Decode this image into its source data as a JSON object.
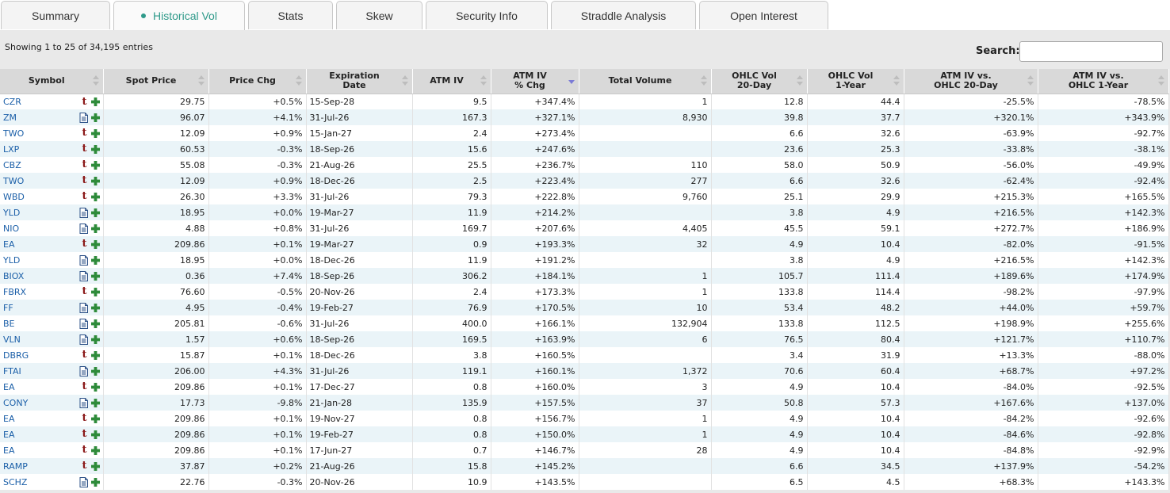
{
  "tabs": [
    {
      "label": "Summary",
      "active": false
    },
    {
      "label": "Historical Vol",
      "active": true
    },
    {
      "label": "Stats",
      "active": false
    },
    {
      "label": "Skew",
      "active": false
    },
    {
      "label": "Security Info",
      "active": false
    },
    {
      "label": "Straddle Analysis",
      "active": false
    },
    {
      "label": "Open Interest",
      "active": false
    }
  ],
  "info_text": "Showing 1 to 25 of 34,195 entries",
  "search": {
    "label": "Search:",
    "value": ""
  },
  "columns": [
    {
      "line1": "Symbol",
      "line2": ""
    },
    {
      "line1": "Spot Price",
      "line2": ""
    },
    {
      "line1": "Price Chg",
      "line2": ""
    },
    {
      "line1": "Expiration",
      "line2": "Date"
    },
    {
      "line1": "ATM IV",
      "line2": ""
    },
    {
      "line1": "ATM IV",
      "line2": "% Chg"
    },
    {
      "line1": "Total Volume",
      "line2": ""
    },
    {
      "line1": "OHLC Vol",
      "line2": "20-Day"
    },
    {
      "line1": "OHLC Vol",
      "line2": "1-Year"
    },
    {
      "line1": "ATM IV vs.",
      "line2": "OHLC 20-Day"
    },
    {
      "line1": "ATM IV vs.",
      "line2": "OHLC 1-Year"
    }
  ],
  "sorted_column": "ATM IV % Chg",
  "colors": {
    "positive": "#1e8a1e",
    "negative": "#c02020",
    "link": "#1b5fa8",
    "tab_active": "#2f9a8a",
    "row_alt": "#eaf4f8"
  },
  "rows": [
    {
      "symbol": "CZR",
      "icon": "t-icon",
      "spot": "29.75",
      "chg": "+0.5%",
      "exp": "15-Sep-28",
      "atm_iv": "9.5",
      "iv_chg": "+347.4%",
      "volume": "1",
      "ohlc20": "12.8",
      "ohlc1y": "44.4",
      "vs20": "-25.5%",
      "vs1y": "-78.5%"
    },
    {
      "symbol": "ZM",
      "icon": "doc-icon",
      "spot": "96.07",
      "chg": "+4.1%",
      "exp": "31-Jul-26",
      "atm_iv": "167.3",
      "iv_chg": "+327.1%",
      "volume": "8,930",
      "ohlc20": "39.8",
      "ohlc1y": "37.7",
      "vs20": "+320.1%",
      "vs1y": "+343.9%"
    },
    {
      "symbol": "TWO",
      "icon": "t-icon",
      "spot": "12.09",
      "chg": "+0.9%",
      "exp": "15-Jan-27",
      "atm_iv": "2.4",
      "iv_chg": "+273.4%",
      "volume": "",
      "ohlc20": "6.6",
      "ohlc1y": "32.6",
      "vs20": "-63.9%",
      "vs1y": "-92.7%"
    },
    {
      "symbol": "LXP",
      "icon": "t-icon",
      "spot": "60.53",
      "chg": "-0.3%",
      "exp": "18-Sep-26",
      "atm_iv": "15.6",
      "iv_chg": "+247.6%",
      "volume": "",
      "ohlc20": "23.6",
      "ohlc1y": "25.3",
      "vs20": "-33.8%",
      "vs1y": "-38.1%"
    },
    {
      "symbol": "CBZ",
      "icon": "t-icon",
      "spot": "55.08",
      "chg": "-0.3%",
      "exp": "21-Aug-26",
      "atm_iv": "25.5",
      "iv_chg": "+236.7%",
      "volume": "110",
      "ohlc20": "58.0",
      "ohlc1y": "50.9",
      "vs20": "-56.0%",
      "vs1y": "-49.9%"
    },
    {
      "symbol": "TWO",
      "icon": "t-icon",
      "spot": "12.09",
      "chg": "+0.9%",
      "exp": "18-Dec-26",
      "atm_iv": "2.5",
      "iv_chg": "+223.4%",
      "volume": "277",
      "ohlc20": "6.6",
      "ohlc1y": "32.6",
      "vs20": "-62.4%",
      "vs1y": "-92.4%"
    },
    {
      "symbol": "WBD",
      "icon": "t-icon",
      "spot": "26.30",
      "chg": "+3.3%",
      "exp": "31-Jul-26",
      "atm_iv": "79.3",
      "iv_chg": "+222.8%",
      "volume": "9,760",
      "ohlc20": "25.1",
      "ohlc1y": "29.9",
      "vs20": "+215.3%",
      "vs1y": "+165.5%"
    },
    {
      "symbol": "YLD",
      "icon": "doc-icon",
      "spot": "18.95",
      "chg": "+0.0%",
      "exp": "19-Mar-27",
      "atm_iv": "11.9",
      "iv_chg": "+214.2%",
      "volume": "",
      "ohlc20": "3.8",
      "ohlc1y": "4.9",
      "vs20": "+216.5%",
      "vs1y": "+142.3%"
    },
    {
      "symbol": "NIO",
      "icon": "doc-icon",
      "spot": "4.88",
      "chg": "+0.8%",
      "exp": "31-Jul-26",
      "atm_iv": "169.7",
      "iv_chg": "+207.6%",
      "volume": "4,405",
      "ohlc20": "45.5",
      "ohlc1y": "59.1",
      "vs20": "+272.7%",
      "vs1y": "+186.9%"
    },
    {
      "symbol": "EA",
      "icon": "t-icon",
      "spot": "209.86",
      "chg": "+0.1%",
      "exp": "19-Mar-27",
      "atm_iv": "0.9",
      "iv_chg": "+193.3%",
      "volume": "32",
      "ohlc20": "4.9",
      "ohlc1y": "10.4",
      "vs20": "-82.0%",
      "vs1y": "-91.5%"
    },
    {
      "symbol": "YLD",
      "icon": "doc-icon",
      "spot": "18.95",
      "chg": "+0.0%",
      "exp": "18-Dec-26",
      "atm_iv": "11.9",
      "iv_chg": "+191.2%",
      "volume": "",
      "ohlc20": "3.8",
      "ohlc1y": "4.9",
      "vs20": "+216.5%",
      "vs1y": "+142.3%"
    },
    {
      "symbol": "BIOX",
      "icon": "doc-icon",
      "spot": "0.36",
      "chg": "+7.4%",
      "exp": "18-Sep-26",
      "atm_iv": "306.2",
      "iv_chg": "+184.1%",
      "volume": "1",
      "ohlc20": "105.7",
      "ohlc1y": "111.4",
      "vs20": "+189.6%",
      "vs1y": "+174.9%"
    },
    {
      "symbol": "FBRX",
      "icon": "t-icon",
      "spot": "76.60",
      "chg": "-0.5%",
      "exp": "20-Nov-26",
      "atm_iv": "2.4",
      "iv_chg": "+173.3%",
      "volume": "1",
      "ohlc20": "133.8",
      "ohlc1y": "114.4",
      "vs20": "-98.2%",
      "vs1y": "-97.9%"
    },
    {
      "symbol": "FF",
      "icon": "doc-icon",
      "spot": "4.95",
      "chg": "-0.4%",
      "exp": "19-Feb-27",
      "atm_iv": "76.9",
      "iv_chg": "+170.5%",
      "volume": "10",
      "ohlc20": "53.4",
      "ohlc1y": "48.2",
      "vs20": "+44.0%",
      "vs1y": "+59.7%"
    },
    {
      "symbol": "BE",
      "icon": "doc-icon",
      "spot": "205.81",
      "chg": "-0.6%",
      "exp": "31-Jul-26",
      "atm_iv": "400.0",
      "iv_chg": "+166.1%",
      "volume": "132,904",
      "ohlc20": "133.8",
      "ohlc1y": "112.5",
      "vs20": "+198.9%",
      "vs1y": "+255.6%"
    },
    {
      "symbol": "VLN",
      "icon": "doc-icon",
      "spot": "1.57",
      "chg": "+0.6%",
      "exp": "18-Sep-26",
      "atm_iv": "169.5",
      "iv_chg": "+163.9%",
      "volume": "6",
      "ohlc20": "76.5",
      "ohlc1y": "80.4",
      "vs20": "+121.7%",
      "vs1y": "+110.7%"
    },
    {
      "symbol": "DBRG",
      "icon": "t-icon",
      "spot": "15.87",
      "chg": "+0.1%",
      "exp": "18-Dec-26",
      "atm_iv": "3.8",
      "iv_chg": "+160.5%",
      "volume": "",
      "ohlc20": "3.4",
      "ohlc1y": "31.9",
      "vs20": "+13.3%",
      "vs1y": "-88.0%"
    },
    {
      "symbol": "FTAI",
      "icon": "doc-icon",
      "spot": "206.00",
      "chg": "+4.3%",
      "exp": "31-Jul-26",
      "atm_iv": "119.1",
      "iv_chg": "+160.1%",
      "volume": "1,372",
      "ohlc20": "70.6",
      "ohlc1y": "60.4",
      "vs20": "+68.7%",
      "vs1y": "+97.2%"
    },
    {
      "symbol": "EA",
      "icon": "t-icon",
      "spot": "209.86",
      "chg": "+0.1%",
      "exp": "17-Dec-27",
      "atm_iv": "0.8",
      "iv_chg": "+160.0%",
      "volume": "3",
      "ohlc20": "4.9",
      "ohlc1y": "10.4",
      "vs20": "-84.0%",
      "vs1y": "-92.5%"
    },
    {
      "symbol": "CONY",
      "icon": "doc-icon",
      "spot": "17.73",
      "chg": "-9.8%",
      "exp": "21-Jan-28",
      "atm_iv": "135.9",
      "iv_chg": "+157.5%",
      "volume": "37",
      "ohlc20": "50.8",
      "ohlc1y": "57.3",
      "vs20": "+167.6%",
      "vs1y": "+137.0%"
    },
    {
      "symbol": "EA",
      "icon": "t-icon",
      "spot": "209.86",
      "chg": "+0.1%",
      "exp": "19-Nov-27",
      "atm_iv": "0.8",
      "iv_chg": "+156.7%",
      "volume": "1",
      "ohlc20": "4.9",
      "ohlc1y": "10.4",
      "vs20": "-84.2%",
      "vs1y": "-92.6%"
    },
    {
      "symbol": "EA",
      "icon": "t-icon",
      "spot": "209.86",
      "chg": "+0.1%",
      "exp": "19-Feb-27",
      "atm_iv": "0.8",
      "iv_chg": "+150.0%",
      "volume": "1",
      "ohlc20": "4.9",
      "ohlc1y": "10.4",
      "vs20": "-84.6%",
      "vs1y": "-92.8%"
    },
    {
      "symbol": "EA",
      "icon": "t-icon",
      "spot": "209.86",
      "chg": "+0.1%",
      "exp": "17-Jun-27",
      "atm_iv": "0.7",
      "iv_chg": "+146.7%",
      "volume": "28",
      "ohlc20": "4.9",
      "ohlc1y": "10.4",
      "vs20": "-84.8%",
      "vs1y": "-92.9%"
    },
    {
      "symbol": "RAMP",
      "icon": "t-icon",
      "spot": "37.87",
      "chg": "+0.2%",
      "exp": "21-Aug-26",
      "atm_iv": "15.8",
      "iv_chg": "+145.2%",
      "volume": "",
      "ohlc20": "6.6",
      "ohlc1y": "34.5",
      "vs20": "+137.9%",
      "vs1y": "-54.2%"
    },
    {
      "symbol": "SCHZ",
      "icon": "doc-icon",
      "spot": "22.76",
      "chg": "-0.3%",
      "exp": "20-Nov-26",
      "atm_iv": "10.9",
      "iv_chg": "+143.5%",
      "volume": "",
      "ohlc20": "6.5",
      "ohlc1y": "4.5",
      "vs20": "+68.3%",
      "vs1y": "+143.3%"
    }
  ]
}
